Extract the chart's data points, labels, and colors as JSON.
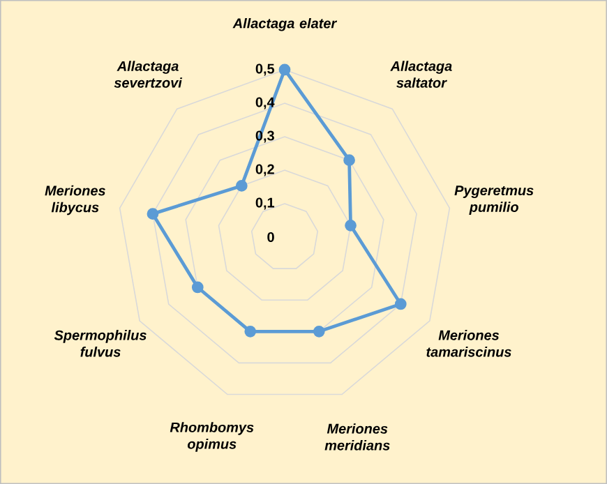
{
  "chart_data": {
    "type": "radar",
    "categories": [
      "Allactaga elater",
      "Allactaga saltator",
      "Pygeretmus pumilio",
      "Meriones tamariscinus",
      "Meriones meridians",
      "Rhombomys opimus",
      "Spermophilus fulvus",
      "Meriones libycus",
      "Allactaga severtzovi"
    ],
    "series": [
      {
        "color": "#5b9bd5",
        "values": [
          0.5,
          0.3,
          0.2,
          0.4,
          0.3,
          0.3,
          0.3,
          0.4,
          0.2
        ]
      }
    ],
    "ylim": [
      0,
      0.5
    ],
    "yticks": [
      0,
      {
        "value": 0.1,
        "label": "0,1"
      },
      {
        "value": 0.2,
        "label": "0,2"
      },
      {
        "value": 0.3,
        "label": "0,3"
      },
      {
        "value": 0.4,
        "label": "0,4"
      },
      {
        "value": 0.5,
        "label": "0,5"
      }
    ],
    "grid": true,
    "marker": "circle"
  }
}
